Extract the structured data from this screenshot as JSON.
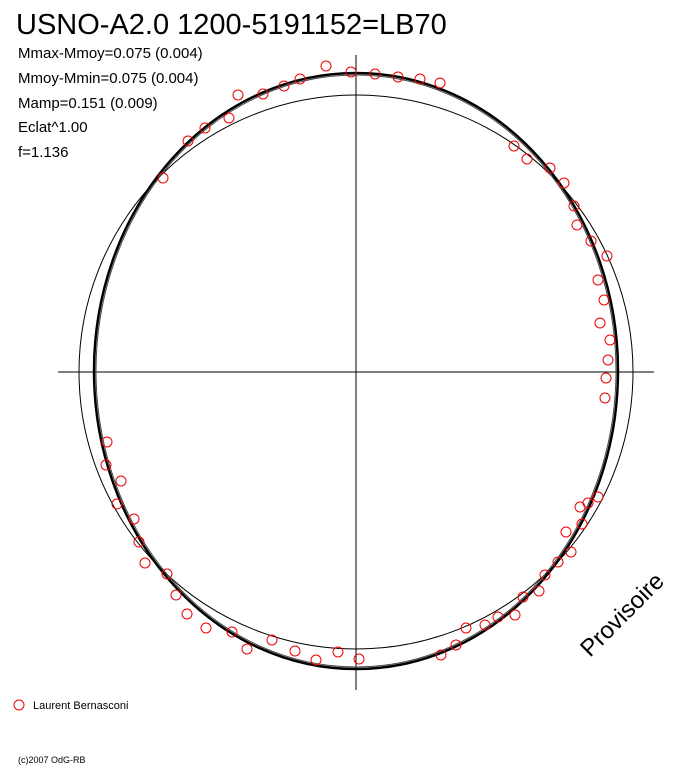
{
  "header": {
    "title": "USNO-A2.0 1200-5191152=LB70"
  },
  "stats": [
    "Mmax-Mmoy=0.075 (0.004)",
    "Mmoy-Mmin=0.075 (0.004)",
    "Mamp=0.151 (0.009)",
    "Eclat^1.00",
    "f=1.136"
  ],
  "watermark": "Provisoire",
  "legend": {
    "label": "Laurent Bernasconi"
  },
  "footer": "(c)2007 OdG-RB"
}
